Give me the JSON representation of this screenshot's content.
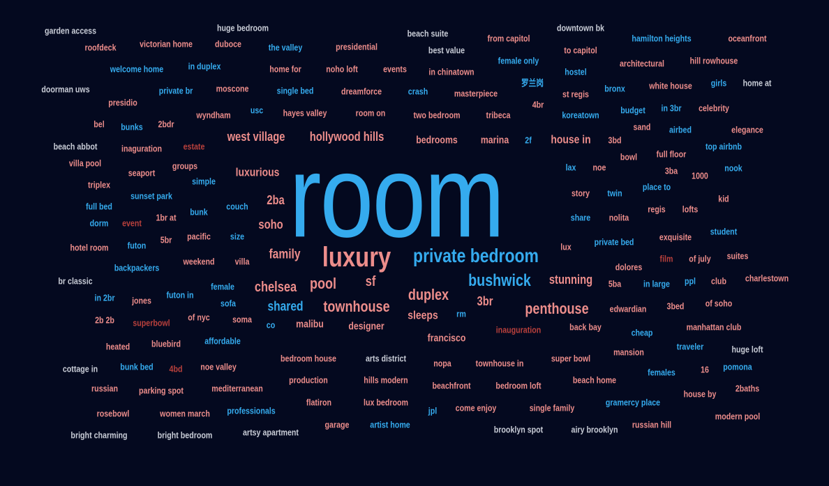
{
  "colors": {
    "background": "#04091f",
    "blue": "#35abee",
    "pink": "#ec8d8b",
    "light": "#c8ccd6",
    "dark": "#b8403c"
  },
  "words": [
    {
      "text": "room",
      "color": "blue"
    },
    {
      "text": "luxury",
      "color": "pink"
    },
    {
      "text": "private bedroom",
      "color": "blue"
    },
    {
      "text": "bushwick",
      "color": "blue"
    },
    {
      "text": "penthouse",
      "color": "pink"
    },
    {
      "text": "townhouse",
      "color": "pink"
    },
    {
      "text": "duplex",
      "color": "pink"
    },
    {
      "text": "pool",
      "color": "pink"
    },
    {
      "text": "chelsea",
      "color": "pink"
    },
    {
      "text": "shared",
      "color": "blue"
    },
    {
      "text": "west village",
      "color": "pink"
    },
    {
      "text": "hollywood hills",
      "color": "pink"
    },
    {
      "text": "stunning",
      "color": "pink"
    },
    {
      "text": "sf",
      "color": "pink"
    },
    {
      "text": "3br",
      "color": "pink"
    },
    {
      "text": "sleeps",
      "color": "pink"
    },
    {
      "text": "family",
      "color": "pink"
    },
    {
      "text": "soho",
      "color": "pink"
    },
    {
      "text": "2ba",
      "color": "pink"
    },
    {
      "text": "luxurious",
      "color": "pink"
    },
    {
      "text": "house in",
      "color": "pink"
    },
    {
      "text": "bedrooms",
      "color": "pink"
    },
    {
      "text": "marina",
      "color": "pink"
    },
    {
      "text": "designer",
      "color": "pink"
    },
    {
      "text": "francisco",
      "color": "pink"
    },
    {
      "text": "malibu",
      "color": "pink"
    },
    {
      "text": "garden access",
      "color": "light"
    },
    {
      "text": "huge bedroom",
      "color": "light"
    },
    {
      "text": "beach suite",
      "color": "light"
    },
    {
      "text": "downtown bk",
      "color": "light"
    },
    {
      "text": "hamilton heights",
      "color": "blue"
    },
    {
      "text": "oceanfront",
      "color": "pink"
    },
    {
      "text": "roofdeck",
      "color": "pink"
    },
    {
      "text": "victorian home",
      "color": "pink"
    },
    {
      "text": "duboce",
      "color": "pink"
    },
    {
      "text": "the valley",
      "color": "blue"
    },
    {
      "text": "presidential",
      "color": "pink"
    },
    {
      "text": "from capitol",
      "color": "pink"
    },
    {
      "text": "best value",
      "color": "light"
    },
    {
      "text": "to capitol",
      "color": "pink"
    },
    {
      "text": "female only",
      "color": "blue"
    },
    {
      "text": "architectural",
      "color": "pink"
    },
    {
      "text": "hill rowhouse",
      "color": "pink"
    },
    {
      "text": "welcome home",
      "color": "blue"
    },
    {
      "text": "in duplex",
      "color": "blue"
    },
    {
      "text": "home for",
      "color": "pink"
    },
    {
      "text": "noho loft",
      "color": "pink"
    },
    {
      "text": "events",
      "color": "pink"
    },
    {
      "text": "in chinatown",
      "color": "pink"
    },
    {
      "text": "hostel",
      "color": "blue"
    },
    {
      "text": "doorman uws",
      "color": "light"
    },
    {
      "text": "private br",
      "color": "blue"
    },
    {
      "text": "moscone",
      "color": "pink"
    },
    {
      "text": "single bed",
      "color": "blue"
    },
    {
      "text": "dreamforce",
      "color": "pink"
    },
    {
      "text": "crash",
      "color": "blue"
    },
    {
      "text": "masterpiece",
      "color": "pink"
    },
    {
      "text": "罗兰岗",
      "color": "blue"
    },
    {
      "text": "st regis",
      "color": "pink"
    },
    {
      "text": "bronx",
      "color": "blue"
    },
    {
      "text": "white house",
      "color": "pink"
    },
    {
      "text": "girls",
      "color": "blue"
    },
    {
      "text": "home at",
      "color": "light"
    },
    {
      "text": "presidio",
      "color": "pink"
    },
    {
      "text": "usc",
      "color": "blue"
    },
    {
      "text": "wyndham",
      "color": "pink"
    },
    {
      "text": "hayes valley",
      "color": "pink"
    },
    {
      "text": "room on",
      "color": "pink"
    },
    {
      "text": "two bedroom",
      "color": "pink"
    },
    {
      "text": "tribeca",
      "color": "pink"
    },
    {
      "text": "4br",
      "color": "pink"
    },
    {
      "text": "koreatown",
      "color": "blue"
    },
    {
      "text": "budget",
      "color": "blue"
    },
    {
      "text": "in 3br",
      "color": "blue"
    },
    {
      "text": "celebrity",
      "color": "pink"
    },
    {
      "text": "bel",
      "color": "pink"
    },
    {
      "text": "bunks",
      "color": "blue"
    },
    {
      "text": "2bdr",
      "color": "pink"
    },
    {
      "text": "sand",
      "color": "pink"
    },
    {
      "text": "airbed",
      "color": "blue"
    },
    {
      "text": "elegance",
      "color": "pink"
    },
    {
      "text": "beach abbot",
      "color": "light"
    },
    {
      "text": "inaguration",
      "color": "pink"
    },
    {
      "text": "estate",
      "color": "dark"
    },
    {
      "text": "2f",
      "color": "blue"
    },
    {
      "text": "3bd",
      "color": "pink"
    },
    {
      "text": "top airbnb",
      "color": "blue"
    },
    {
      "text": "bowl",
      "color": "pink"
    },
    {
      "text": "full floor",
      "color": "pink"
    },
    {
      "text": "villa pool",
      "color": "pink"
    },
    {
      "text": "groups",
      "color": "pink"
    },
    {
      "text": "lax",
      "color": "blue"
    },
    {
      "text": "noe",
      "color": "pink"
    },
    {
      "text": "3ba",
      "color": "pink"
    },
    {
      "text": "nook",
      "color": "blue"
    },
    {
      "text": "seaport",
      "color": "pink"
    },
    {
      "text": "1000",
      "color": "pink"
    },
    {
      "text": "triplex",
      "color": "pink"
    },
    {
      "text": "simple",
      "color": "blue"
    },
    {
      "text": "story",
      "color": "pink"
    },
    {
      "text": "twin",
      "color": "blue"
    },
    {
      "text": "place to",
      "color": "blue"
    },
    {
      "text": "sunset park",
      "color": "blue"
    },
    {
      "text": "kid",
      "color": "pink"
    },
    {
      "text": "couch",
      "color": "blue"
    },
    {
      "text": "full bed",
      "color": "blue"
    },
    {
      "text": "bunk",
      "color": "blue"
    },
    {
      "text": "regis",
      "color": "pink"
    },
    {
      "text": "lofts",
      "color": "pink"
    },
    {
      "text": "1br at",
      "color": "pink"
    },
    {
      "text": "dorm",
      "color": "blue"
    },
    {
      "text": "event",
      "color": "dark"
    },
    {
      "text": "share",
      "color": "blue"
    },
    {
      "text": "nolita",
      "color": "pink"
    },
    {
      "text": "student",
      "color": "blue"
    },
    {
      "text": "size",
      "color": "blue"
    },
    {
      "text": "pacific",
      "color": "pink"
    },
    {
      "text": "exquisite",
      "color": "pink"
    },
    {
      "text": "5br",
      "color": "pink"
    },
    {
      "text": "private bed",
      "color": "blue"
    },
    {
      "text": "hotel room",
      "color": "pink"
    },
    {
      "text": "futon",
      "color": "blue"
    },
    {
      "text": "lux",
      "color": "pink"
    },
    {
      "text": "film",
      "color": "dark"
    },
    {
      "text": "of july",
      "color": "pink"
    },
    {
      "text": "suites",
      "color": "pink"
    },
    {
      "text": "weekend",
      "color": "pink"
    },
    {
      "text": "villa",
      "color": "pink"
    },
    {
      "text": "dolores",
      "color": "pink"
    },
    {
      "text": "backpackers",
      "color": "blue"
    },
    {
      "text": "br classic",
      "color": "light"
    },
    {
      "text": "5ba",
      "color": "pink"
    },
    {
      "text": "in large",
      "color": "blue"
    },
    {
      "text": "ppl",
      "color": "blue"
    },
    {
      "text": "club",
      "color": "pink"
    },
    {
      "text": "charlestown",
      "color": "pink"
    },
    {
      "text": "female",
      "color": "blue"
    },
    {
      "text": "futon in",
      "color": "blue"
    },
    {
      "text": "in 2br",
      "color": "blue"
    },
    {
      "text": "jones",
      "color": "pink"
    },
    {
      "text": "sofa",
      "color": "blue"
    },
    {
      "text": "rm",
      "color": "blue"
    },
    {
      "text": "edwardian",
      "color": "pink"
    },
    {
      "text": "3bed",
      "color": "pink"
    },
    {
      "text": "of soho",
      "color": "pink"
    },
    {
      "text": "2b 2b",
      "color": "pink"
    },
    {
      "text": "superbowl",
      "color": "dark"
    },
    {
      "text": "of nyc",
      "color": "pink"
    },
    {
      "text": "soma",
      "color": "pink"
    },
    {
      "text": "co",
      "color": "blue"
    },
    {
      "text": "inauguration",
      "color": "dark"
    },
    {
      "text": "back bay",
      "color": "pink"
    },
    {
      "text": "cheap",
      "color": "blue"
    },
    {
      "text": "manhattan club",
      "color": "pink"
    },
    {
      "text": "heated",
      "color": "pink"
    },
    {
      "text": "bluebird",
      "color": "pink"
    },
    {
      "text": "affordable",
      "color": "blue"
    },
    {
      "text": "mansion",
      "color": "pink"
    },
    {
      "text": "traveler",
      "color": "blue"
    },
    {
      "text": "huge loft",
      "color": "light"
    },
    {
      "text": "bedroom house",
      "color": "pink"
    },
    {
      "text": "arts district",
      "color": "light"
    },
    {
      "text": "super bowl",
      "color": "pink"
    },
    {
      "text": "cottage in",
      "color": "light"
    },
    {
      "text": "bunk bed",
      "color": "blue"
    },
    {
      "text": "4bd",
      "color": "dark"
    },
    {
      "text": "noe valley",
      "color": "pink"
    },
    {
      "text": "nopa",
      "color": "pink"
    },
    {
      "text": "townhouse in",
      "color": "pink"
    },
    {
      "text": "females",
      "color": "blue"
    },
    {
      "text": "16",
      "color": "pink"
    },
    {
      "text": "pomona",
      "color": "blue"
    },
    {
      "text": "production",
      "color": "pink"
    },
    {
      "text": "hills modern",
      "color": "pink"
    },
    {
      "text": "beach home",
      "color": "pink"
    },
    {
      "text": "russian",
      "color": "pink"
    },
    {
      "text": "parking spot",
      "color": "pink"
    },
    {
      "text": "mediterranean",
      "color": "pink"
    },
    {
      "text": "beachfront",
      "color": "pink"
    },
    {
      "text": "bedroom loft",
      "color": "pink"
    },
    {
      "text": "2baths",
      "color": "pink"
    },
    {
      "text": "house by",
      "color": "pink"
    },
    {
      "text": "gramercy place",
      "color": "blue"
    },
    {
      "text": "flatiron",
      "color": "pink"
    },
    {
      "text": "lux bedroom",
      "color": "pink"
    },
    {
      "text": "come enjoy",
      "color": "pink"
    },
    {
      "text": "single family",
      "color": "pink"
    },
    {
      "text": "rosebowl",
      "color": "pink"
    },
    {
      "text": "women march",
      "color": "pink"
    },
    {
      "text": "professionals",
      "color": "blue"
    },
    {
      "text": "jpl",
      "color": "blue"
    },
    {
      "text": "modern pool",
      "color": "pink"
    },
    {
      "text": "russian hill",
      "color": "pink"
    },
    {
      "text": "garage",
      "color": "pink"
    },
    {
      "text": "artist home",
      "color": "blue"
    },
    {
      "text": "bright charming",
      "color": "light"
    },
    {
      "text": "bright bedroom",
      "color": "light"
    },
    {
      "text": "artsy apartment",
      "color": "light"
    },
    {
      "text": "brooklyn spot",
      "color": "light"
    },
    {
      "text": "airy brooklyn",
      "color": "light"
    }
  ]
}
